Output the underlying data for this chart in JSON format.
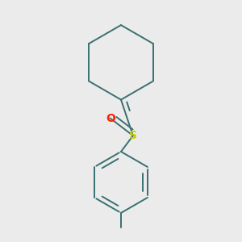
{
  "bg_color": "#ebebeb",
  "bond_color": "#3a7070",
  "S_color": "#cccc00",
  "O_color": "#ff2200",
  "line_width": 1.4,
  "figsize": [
    3.0,
    3.0
  ],
  "dpi": 100
}
